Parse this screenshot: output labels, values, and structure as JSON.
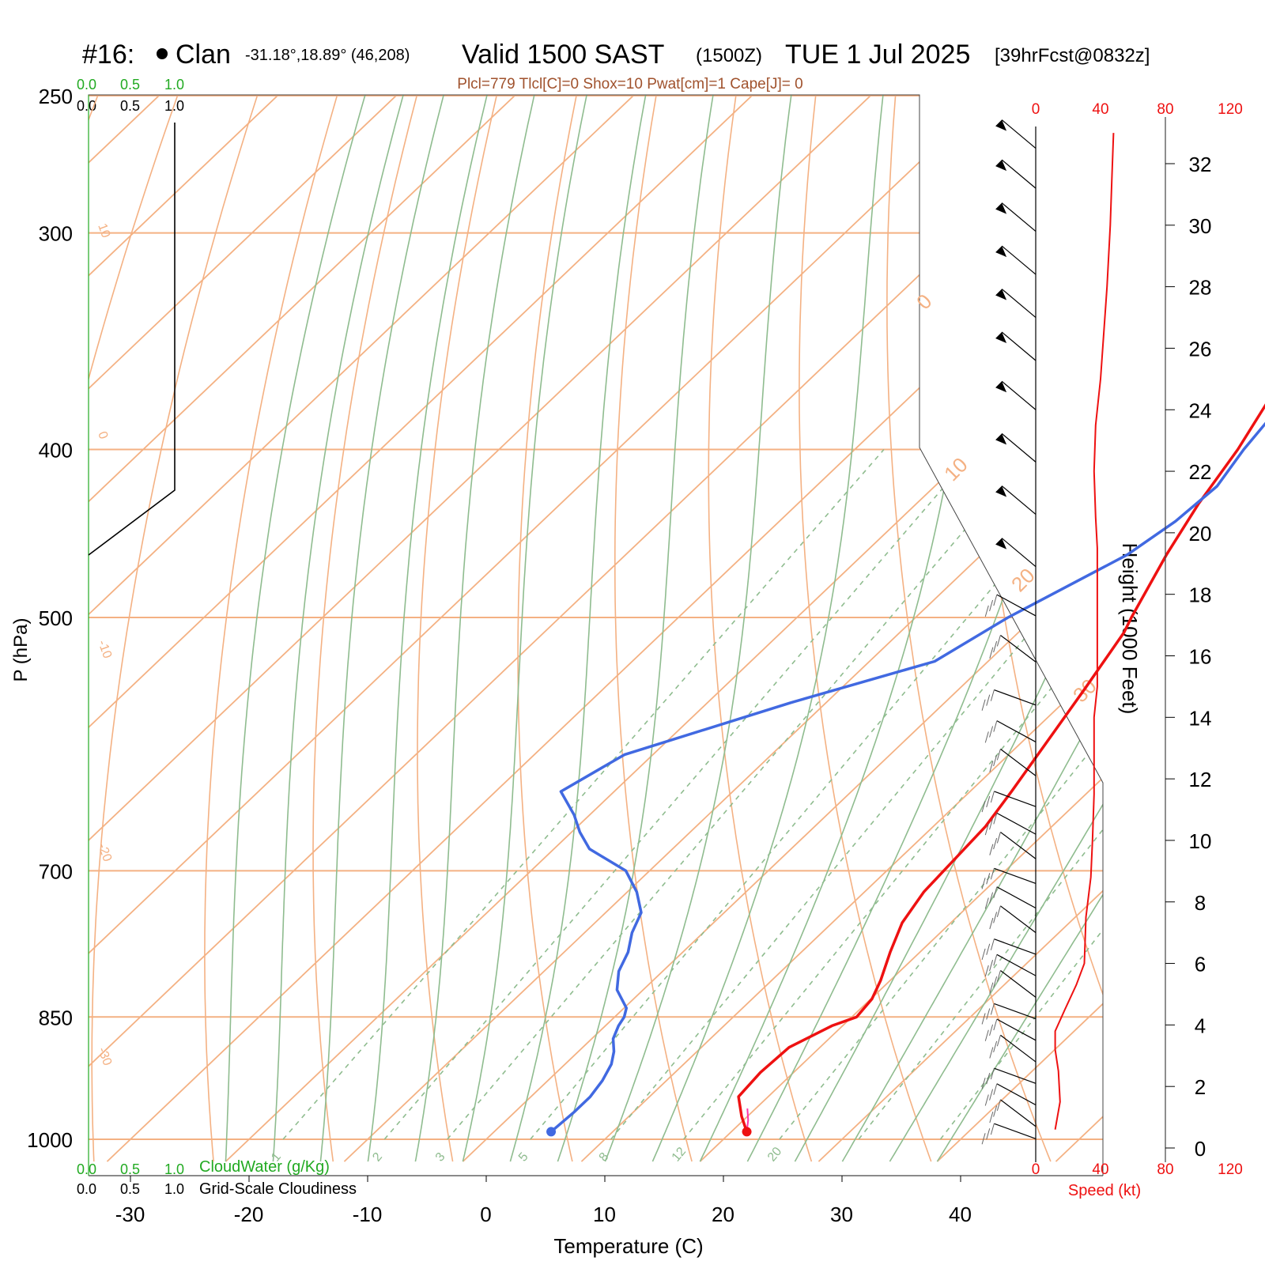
{
  "header": {
    "station_id": "#16:",
    "station_name": "Clan",
    "coords": "-31.18°,18.89° (46,208)",
    "valid": "Valid 1500 SAST",
    "zulu": "(1500Z)",
    "date": "TUE 1 Jul 2025",
    "forecast": "[39hrFcst@0832z]",
    "indices": "Plcl=779 Tlcl[C]=0 Shox=10 Pwat[cm]=1 Cape[J]= 0"
  },
  "colors": {
    "temperature": "#ee1111",
    "dewpoint": "#4169e1",
    "isotherm_isobar": "#f4b183",
    "dry_adiabat": "#f4b183",
    "moist_adiabat": "#8fbc8f",
    "mixing_ratio": "#8fbc8f",
    "cloud_scale": "#22aa22",
    "indices_text": "#a0522d",
    "speed_axis": "#ee1111"
  },
  "cloud_scale": {
    "top_green": [
      "0.0",
      "0.5",
      "1.0"
    ],
    "top_black": [
      "0.0",
      "0.5",
      "1.0"
    ],
    "bottom_green": [
      "0.0",
      "0.5",
      "1.0"
    ],
    "bottom_black": [
      "0.0",
      "0.5",
      "1.0"
    ],
    "cloudwater_label": "CloudWater (g/Kg)",
    "cloudiness_label": "Grid-Scale Cloudiness"
  },
  "chart_data": {
    "type": "line",
    "subtype": "skew-T log-P sounding",
    "xlabel": "Temperature (C)",
    "ylabel": "P (hPa)",
    "x_ticks": [
      -30,
      -20,
      -10,
      0,
      10,
      20,
      30,
      40
    ],
    "p_ticks": [
      250,
      300,
      400,
      500,
      700,
      850,
      1000
    ],
    "isotherm_labels": [
      "10",
      "0",
      "-10",
      "-20",
      "-30",
      "0",
      "10",
      "20",
      "30"
    ],
    "mixing_ratio_labels": [
      "1",
      "2",
      "3",
      "5",
      "8",
      "12",
      "20"
    ],
    "height_axis": {
      "label": "Height (1000 Feet)",
      "ticks": [
        0,
        2,
        4,
        6,
        8,
        10,
        12,
        14,
        16,
        18,
        20,
        22,
        24,
        26,
        28,
        30,
        32
      ]
    },
    "speed_axis": {
      "label": "Speed (kt)",
      "ticks": [
        0,
        40,
        80,
        120
      ]
    },
    "series": [
      {
        "name": "temperature",
        "points": [
          [
            21.3,
            990
          ],
          [
            19.5,
            970
          ],
          [
            17.5,
            945
          ],
          [
            17.2,
            915
          ],
          [
            17.4,
            885
          ],
          [
            19.1,
            860
          ],
          [
            20.4,
            850
          ],
          [
            20.1,
            830
          ],
          [
            19.2,
            810
          ],
          [
            17.5,
            780
          ],
          [
            15.9,
            750
          ],
          [
            15.0,
            720
          ],
          [
            14.8,
            700
          ],
          [
            14.4,
            660
          ],
          [
            13.5,
            630
          ],
          [
            12.1,
            590
          ],
          [
            10.6,
            550
          ],
          [
            8.9,
            510
          ],
          [
            8.2,
            500
          ],
          [
            5.6,
            460
          ],
          [
            3.8,
            430
          ],
          [
            2.3,
            400
          ],
          [
            0.2,
            370
          ],
          [
            -2.2,
            340
          ],
          [
            -4.9,
            310
          ],
          [
            -7.8,
            280
          ],
          [
            -10.7,
            258
          ]
        ]
      },
      {
        "name": "dewpoint",
        "points": [
          [
            4.8,
            990
          ],
          [
            5.0,
            965
          ],
          [
            5.0,
            945
          ],
          [
            4.6,
            925
          ],
          [
            3.9,
            905
          ],
          [
            3.0,
            890
          ],
          [
            1.8,
            875
          ],
          [
            1.1,
            860
          ],
          [
            0.8,
            850
          ],
          [
            0.2,
            840
          ],
          [
            -2.2,
            820
          ],
          [
            -3.7,
            800
          ],
          [
            -4.6,
            780
          ],
          [
            -6.0,
            760
          ],
          [
            -7.0,
            740
          ],
          [
            -9.2,
            720
          ],
          [
            -12.0,
            700
          ],
          [
            -17.0,
            680
          ],
          [
            -19.3,
            665
          ],
          [
            -21.3,
            650
          ],
          [
            -24.5,
            630
          ],
          [
            -22.4,
            600
          ],
          [
            -13.0,
            560
          ],
          [
            -4.5,
            530
          ],
          [
            -2.2,
            500
          ],
          [
            2.3,
            460
          ],
          [
            3.4,
            440
          ],
          [
            3.8,
            420
          ],
          [
            2.8,
            400
          ],
          [
            2.1,
            380
          ],
          [
            0.4,
            360
          ],
          [
            -2.0,
            340
          ],
          [
            -4.3,
            320
          ],
          [
            -6.6,
            300
          ],
          [
            -9.8,
            280
          ],
          [
            -13.7,
            258
          ]
        ]
      },
      {
        "name": "parcel",
        "points": [
          [
            21.3,
            990
          ],
          [
            20.4,
            975
          ],
          [
            19.3,
            960
          ]
        ]
      }
    ],
    "speed_profile": [
      [
        12,
        0.6
      ],
      [
        15,
        1.5
      ],
      [
        14,
        2.5
      ],
      [
        12,
        3.2
      ],
      [
        12,
        3.8
      ],
      [
        18,
        4.5
      ],
      [
        25,
        5.3
      ],
      [
        30,
        6.0
      ],
      [
        31,
        7.5
      ],
      [
        34,
        8.8
      ],
      [
        35,
        10
      ],
      [
        36,
        11.5
      ],
      [
        36,
        13
      ],
      [
        36,
        14
      ],
      [
        38,
        15
      ],
      [
        38,
        17
      ],
      [
        38,
        18.5
      ],
      [
        38,
        19.5
      ],
      [
        37,
        20.5
      ],
      [
        36,
        22
      ],
      [
        37,
        23.5
      ],
      [
        40,
        25
      ],
      [
        42,
        26.5
      ],
      [
        44,
        28
      ],
      [
        46,
        30
      ],
      [
        47,
        31.5
      ],
      [
        48,
        33
      ]
    ],
    "wind_barb_heights": [
      32.5,
      31.2,
      29.8,
      28.4,
      27.0,
      25.6,
      24.0,
      22.3,
      20.6,
      18.9,
      17.3,
      15.8,
      14.4,
      13.2,
      12.1,
      11.1,
      10.2,
      9.4,
      8.6,
      7.8,
      7.0,
      6.3,
      5.6,
      4.9,
      4.2,
      3.5,
      2.8,
      2.1,
      1.4,
      0.7,
      0.3
    ]
  }
}
